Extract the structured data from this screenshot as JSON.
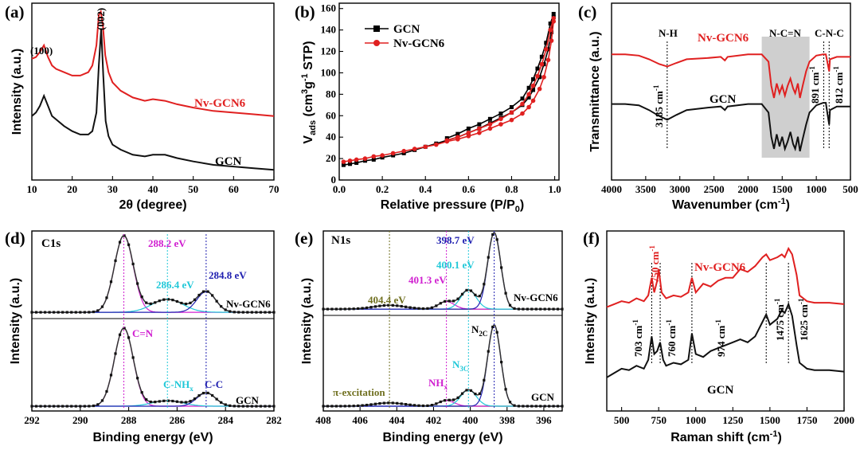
{
  "chart_data": [
    {
      "panel": "(a)",
      "type": "line",
      "xlabel": "2θ (degree)",
      "ylabel": "Intensity (a.u.)",
      "xlim": [
        10,
        70
      ],
      "xticks": [
        "10",
        "20",
        "30",
        "40",
        "50",
        "60",
        "70"
      ],
      "series": [
        {
          "name": "Nv-GCN6",
          "color": "#e02020",
          "x": [
            10,
            11,
            12,
            13,
            14,
            15,
            16,
            18,
            20,
            22,
            24,
            25,
            26,
            26.6,
            27.1,
            27.6,
            28.2,
            29,
            30,
            32,
            35,
            38,
            40,
            43,
            46,
            50,
            55,
            60,
            65,
            70
          ],
          "y": [
            0.72,
            0.73,
            0.76,
            0.8,
            0.73,
            0.68,
            0.66,
            0.64,
            0.62,
            0.62,
            0.64,
            0.68,
            0.8,
            0.98,
            1.0,
            0.92,
            0.74,
            0.64,
            0.58,
            0.53,
            0.49,
            0.47,
            0.48,
            0.47,
            0.45,
            0.43,
            0.41,
            0.4,
            0.39,
            0.38
          ]
        },
        {
          "name": "GCN",
          "color": "#111111",
          "x": [
            10,
            11,
            12,
            13,
            14,
            15,
            16,
            18,
            20,
            22,
            24,
            25,
            26,
            26.6,
            27.2,
            27.7,
            28.3,
            29,
            30,
            32,
            35,
            38,
            40,
            43,
            46,
            50,
            55,
            60,
            65,
            70
          ],
          "y": [
            0.38,
            0.4,
            0.44,
            0.5,
            0.44,
            0.38,
            0.36,
            0.32,
            0.29,
            0.27,
            0.27,
            0.29,
            0.4,
            0.68,
            0.9,
            0.62,
            0.35,
            0.26,
            0.21,
            0.18,
            0.15,
            0.14,
            0.15,
            0.15,
            0.13,
            0.11,
            0.09,
            0.08,
            0.07,
            0.06
          ]
        }
      ],
      "labels": {
        "peak100": "(100)",
        "peak002": "(002)",
        "nv": "Nv-GCN6",
        "gcn": "GCN"
      }
    },
    {
      "panel": "(b)",
      "type": "line",
      "xlabel": "Relative pressure (P/P",
      "xlabel_sub": "0",
      "xlabel_end": ")",
      "ylabel_main": "V",
      "ylabel_sub": "ads",
      "ylabel_rest": " (cm",
      "ylabel_sup1": "3",
      "ylabel_mid": "g",
      "ylabel_sup2": "-1",
      "ylabel_end": " STP)",
      "xlim": [
        0,
        1
      ],
      "ylim": [
        0,
        160
      ],
      "xticks": [
        "0.0",
        "0.2",
        "0.4",
        "0.6",
        "0.8",
        "1.0"
      ],
      "yticks": [
        "0",
        "20",
        "40",
        "60",
        "80",
        "100",
        "120",
        "140",
        "160"
      ],
      "legend": [
        "GCN",
        "Nv-GCN6"
      ],
      "series": [
        {
          "name": "GCN adsorption",
          "color": "#000000",
          "marker": "square",
          "x": [
            0.02,
            0.05,
            0.08,
            0.12,
            0.16,
            0.2,
            0.25,
            0.3,
            0.35,
            0.4,
            0.45,
            0.5,
            0.55,
            0.6,
            0.65,
            0.7,
            0.75,
            0.8,
            0.85,
            0.88,
            0.9,
            0.93,
            0.95,
            0.97,
            0.985,
            0.995
          ],
          "y": [
            14,
            15,
            16,
            18,
            19,
            21,
            23,
            25,
            28,
            31,
            34,
            37,
            40,
            44,
            48,
            53,
            58,
            63,
            70,
            77,
            84,
            96,
            108,
            122,
            138,
            152
          ]
        },
        {
          "name": "GCN desorption",
          "color": "#000000",
          "marker": "square",
          "x": [
            0.995,
            0.98,
            0.96,
            0.94,
            0.92,
            0.9,
            0.88,
            0.85,
            0.8,
            0.75,
            0.7,
            0.65,
            0.6,
            0.55,
            0.5
          ],
          "y": [
            155,
            146,
            128,
            115,
            104,
            94,
            86,
            76,
            68,
            62,
            57,
            52,
            48,
            43,
            39
          ]
        },
        {
          "name": "Nv-GCN6 adsorption",
          "color": "#e02020",
          "marker": "circle",
          "x": [
            0.02,
            0.05,
            0.08,
            0.12,
            0.16,
            0.2,
            0.25,
            0.3,
            0.35,
            0.4,
            0.45,
            0.5,
            0.55,
            0.6,
            0.65,
            0.7,
            0.75,
            0.8,
            0.85,
            0.88,
            0.9,
            0.93,
            0.95,
            0.97,
            0.985,
            0.995
          ],
          "y": [
            17,
            18,
            19,
            20,
            22,
            23,
            25,
            27,
            29,
            31,
            33,
            36,
            38,
            41,
            44,
            48,
            52,
            56,
            62,
            68,
            74,
            85,
            96,
            112,
            130,
            148
          ]
        },
        {
          "name": "Nv-GCN6 desorption",
          "color": "#e02020",
          "marker": "circle",
          "x": [
            0.995,
            0.98,
            0.96,
            0.94,
            0.92,
            0.9,
            0.88,
            0.85,
            0.8,
            0.75,
            0.7,
            0.65,
            0.6,
            0.55,
            0.5
          ],
          "y": [
            151,
            140,
            122,
            108,
            97,
            88,
            80,
            71,
            63,
            57,
            52,
            48,
            44,
            40,
            37
          ]
        }
      ]
    },
    {
      "panel": "(c)",
      "type": "line",
      "xlabel": "Wavenumber (cm",
      "xlabel_sup": "-1",
      "xlabel_end": ")",
      "ylabel": "Transmittance (a.u.)",
      "xlim": [
        4000,
        500
      ],
      "xticks": [
        "4000",
        "3500",
        "3000",
        "2500",
        "2000",
        "1500",
        "1000",
        "500"
      ],
      "series": [
        {
          "name": "Nv-GCN6",
          "color": "#e02020",
          "x": [
            4000,
            3800,
            3600,
            3450,
            3300,
            3185,
            3050,
            2900,
            2600,
            2400,
            2340,
            2300,
            2000,
            1800,
            1700,
            1660,
            1620,
            1580,
            1540,
            1500,
            1460,
            1420,
            1380,
            1340,
            1310,
            1270,
            1240,
            1200,
            1150,
            1100,
            1000,
            900,
            860,
            840,
            812,
            800,
            700,
            600,
            500
          ],
          "y": [
            0.84,
            0.84,
            0.83,
            0.8,
            0.76,
            0.74,
            0.77,
            0.8,
            0.81,
            0.82,
            0.79,
            0.82,
            0.84,
            0.84,
            0.78,
            0.58,
            0.48,
            0.6,
            0.52,
            0.58,
            0.5,
            0.58,
            0.64,
            0.56,
            0.52,
            0.6,
            0.48,
            0.58,
            0.7,
            0.78,
            0.83,
            0.84,
            0.84,
            0.78,
            0.7,
            0.8,
            0.82,
            0.82,
            0.82
          ]
        },
        {
          "name": "GCN",
          "color": "#111111",
          "x": [
            4000,
            3800,
            3600,
            3450,
            3300,
            3185,
            3050,
            2900,
            2600,
            2400,
            2340,
            2300,
            2000,
            1800,
            1700,
            1660,
            1620,
            1580,
            1540,
            1500,
            1460,
            1420,
            1380,
            1340,
            1310,
            1270,
            1240,
            1200,
            1150,
            1100,
            1000,
            900,
            860,
            840,
            812,
            800,
            700,
            600,
            500
          ],
          "y": [
            0.43,
            0.43,
            0.42,
            0.38,
            0.33,
            0.3,
            0.34,
            0.38,
            0.4,
            0.41,
            0.38,
            0.41,
            0.43,
            0.43,
            0.36,
            0.16,
            0.06,
            0.18,
            0.08,
            0.16,
            0.06,
            0.12,
            0.2,
            0.1,
            0.06,
            0.16,
            0.04,
            0.14,
            0.26,
            0.36,
            0.42,
            0.44,
            0.44,
            0.36,
            0.26,
            0.38,
            0.41,
            0.41,
            0.41
          ]
        }
      ],
      "annotations": {
        "nh": "N-H",
        "ncn": "N-C=N",
        "cnc": "C-N-C",
        "w3185": "3185 cm",
        "w891": "891 cm",
        "w812": "812 cm",
        "sup": "-1",
        "nv": "Nv-GCN6",
        "gcn": "GCN"
      },
      "shade_range": [
        1800,
        1100
      ],
      "vlines": [
        3185,
        891,
        812
      ]
    },
    {
      "panel": "(d)",
      "type": "line",
      "title": "C1s",
      "xlabel": "Binding energy (eV)",
      "ylabel": "Intensity (a.u.)",
      "xlim": [
        292,
        282
      ],
      "xticks": [
        "292",
        "290",
        "288",
        "286",
        "284",
        "282"
      ],
      "peaks": {
        "cn": 288.2,
        "cnh": 286.4,
        "cc": 284.8
      },
      "upper": {
        "name": "Nv-GCN6",
        "amps": [
          1.0,
          0.17,
          0.27
        ],
        "widths": [
          0.55,
          0.9,
          0.55
        ]
      },
      "lower": {
        "name": "GCN",
        "amps": [
          1.0,
          0.07,
          0.17
        ],
        "widths": [
          0.55,
          0.9,
          0.55
        ]
      },
      "labels": {
        "e1": "288.2 eV",
        "e2": "286.4 eV",
        "e3": "284.8 eV",
        "cn": "C=N",
        "cnh": "C-NH",
        "cnh_sub": "x",
        "cc": "C-C",
        "nv": "Nv-GCN6",
        "gcn": "GCN"
      }
    },
    {
      "panel": "(e)",
      "type": "line",
      "title": "N1s",
      "xlabel": "Binding energy (eV)",
      "ylabel": "Intensity (a.u.)",
      "xlim": [
        408,
        395
      ],
      "xticks": [
        "408",
        "406",
        "404",
        "402",
        "400",
        "398",
        "396"
      ],
      "peaks": {
        "pi": 404.4,
        "nh": 401.3,
        "n3c": 400.1,
        "n2c": 398.7
      },
      "upper": {
        "name": "Nv-GCN6",
        "amps": [
          0.05,
          0.1,
          0.25,
          1.0
        ],
        "widths": [
          1.2,
          0.6,
          0.6,
          0.5
        ]
      },
      "lower": {
        "name": "GCN",
        "amps": [
          0.04,
          0.07,
          0.2,
          1.0
        ],
        "widths": [
          1.2,
          0.6,
          0.6,
          0.5
        ]
      },
      "labels": {
        "e1": "398.7 eV",
        "e2": "400.1 eV",
        "e3": "401.3 eV",
        "e4": "404.4 eV",
        "n2c": "N",
        "n2c_sub": "2C",
        "n3c": "N",
        "n3c_sub": "3C",
        "nh": "NH",
        "nh_sub": "x",
        "pi": "π-excitation",
        "nv": "Nv-GCN6",
        "gcn": "GCN"
      }
    },
    {
      "panel": "(f)",
      "type": "line",
      "xlabel": "Raman shift (cm",
      "xlabel_sup": "-1",
      "xlabel_end": ")",
      "ylabel": "Intensity (a.u.)",
      "xlim": [
        400,
        2000
      ],
      "xticks": [
        "500",
        "750",
        "1000",
        "1250",
        "1500",
        "1750",
        "2000"
      ],
      "series": [
        {
          "name": "Nv-GCN6",
          "color": "#e02020",
          "x": [
            400,
            450,
            500,
            550,
            600,
            650,
            680,
            703,
            720,
            740,
            750,
            770,
            800,
            850,
            900,
            950,
            974,
            1000,
            1050,
            1100,
            1150,
            1200,
            1250,
            1300,
            1350,
            1400,
            1450,
            1475,
            1500,
            1550,
            1580,
            1600,
            1625,
            1650,
            1680,
            1700,
            1750,
            1800,
            1900,
            2000
          ],
          "y": [
            0.6,
            0.62,
            0.64,
            0.63,
            0.66,
            0.64,
            0.68,
            0.8,
            0.7,
            0.78,
            0.86,
            0.7,
            0.66,
            0.68,
            0.67,
            0.7,
            0.8,
            0.7,
            0.76,
            0.74,
            0.78,
            0.8,
            0.8,
            0.86,
            0.84,
            0.88,
            0.94,
            0.96,
            0.92,
            0.94,
            0.96,
            0.94,
            1.0,
            0.96,
            0.82,
            0.68,
            0.64,
            0.63,
            0.63,
            0.62
          ]
        },
        {
          "name": "GCN",
          "color": "#111111",
          "x": [
            400,
            450,
            500,
            550,
            600,
            650,
            680,
            703,
            720,
            740,
            760,
            780,
            800,
            850,
            900,
            950,
            974,
            1000,
            1050,
            1100,
            1150,
            1200,
            1250,
            1300,
            1350,
            1400,
            1450,
            1475,
            1500,
            1550,
            1580,
            1600,
            1625,
            1650,
            1680,
            1700,
            1750,
            1800,
            1900,
            2000
          ],
          "y": [
            0.12,
            0.15,
            0.18,
            0.17,
            0.2,
            0.18,
            0.24,
            0.4,
            0.28,
            0.3,
            0.36,
            0.24,
            0.2,
            0.22,
            0.21,
            0.24,
            0.42,
            0.28,
            0.26,
            0.3,
            0.32,
            0.34,
            0.36,
            0.38,
            0.36,
            0.4,
            0.5,
            0.55,
            0.48,
            0.52,
            0.58,
            0.56,
            0.62,
            0.54,
            0.34,
            0.22,
            0.18,
            0.17,
            0.17,
            0.16
          ]
        }
      ],
      "annotations": {
        "w703": "703 cm",
        "w760": "760 cm",
        "w974": "974 cm",
        "w1475": "1475 cm",
        "w1625": "1625 cm",
        "w750": "750 cm",
        "sup": "-1",
        "nv": "Nv-GCN6",
        "gcn": "GCN"
      },
      "vlines": [
        703,
        760,
        974,
        1475,
        1625
      ]
    }
  ]
}
